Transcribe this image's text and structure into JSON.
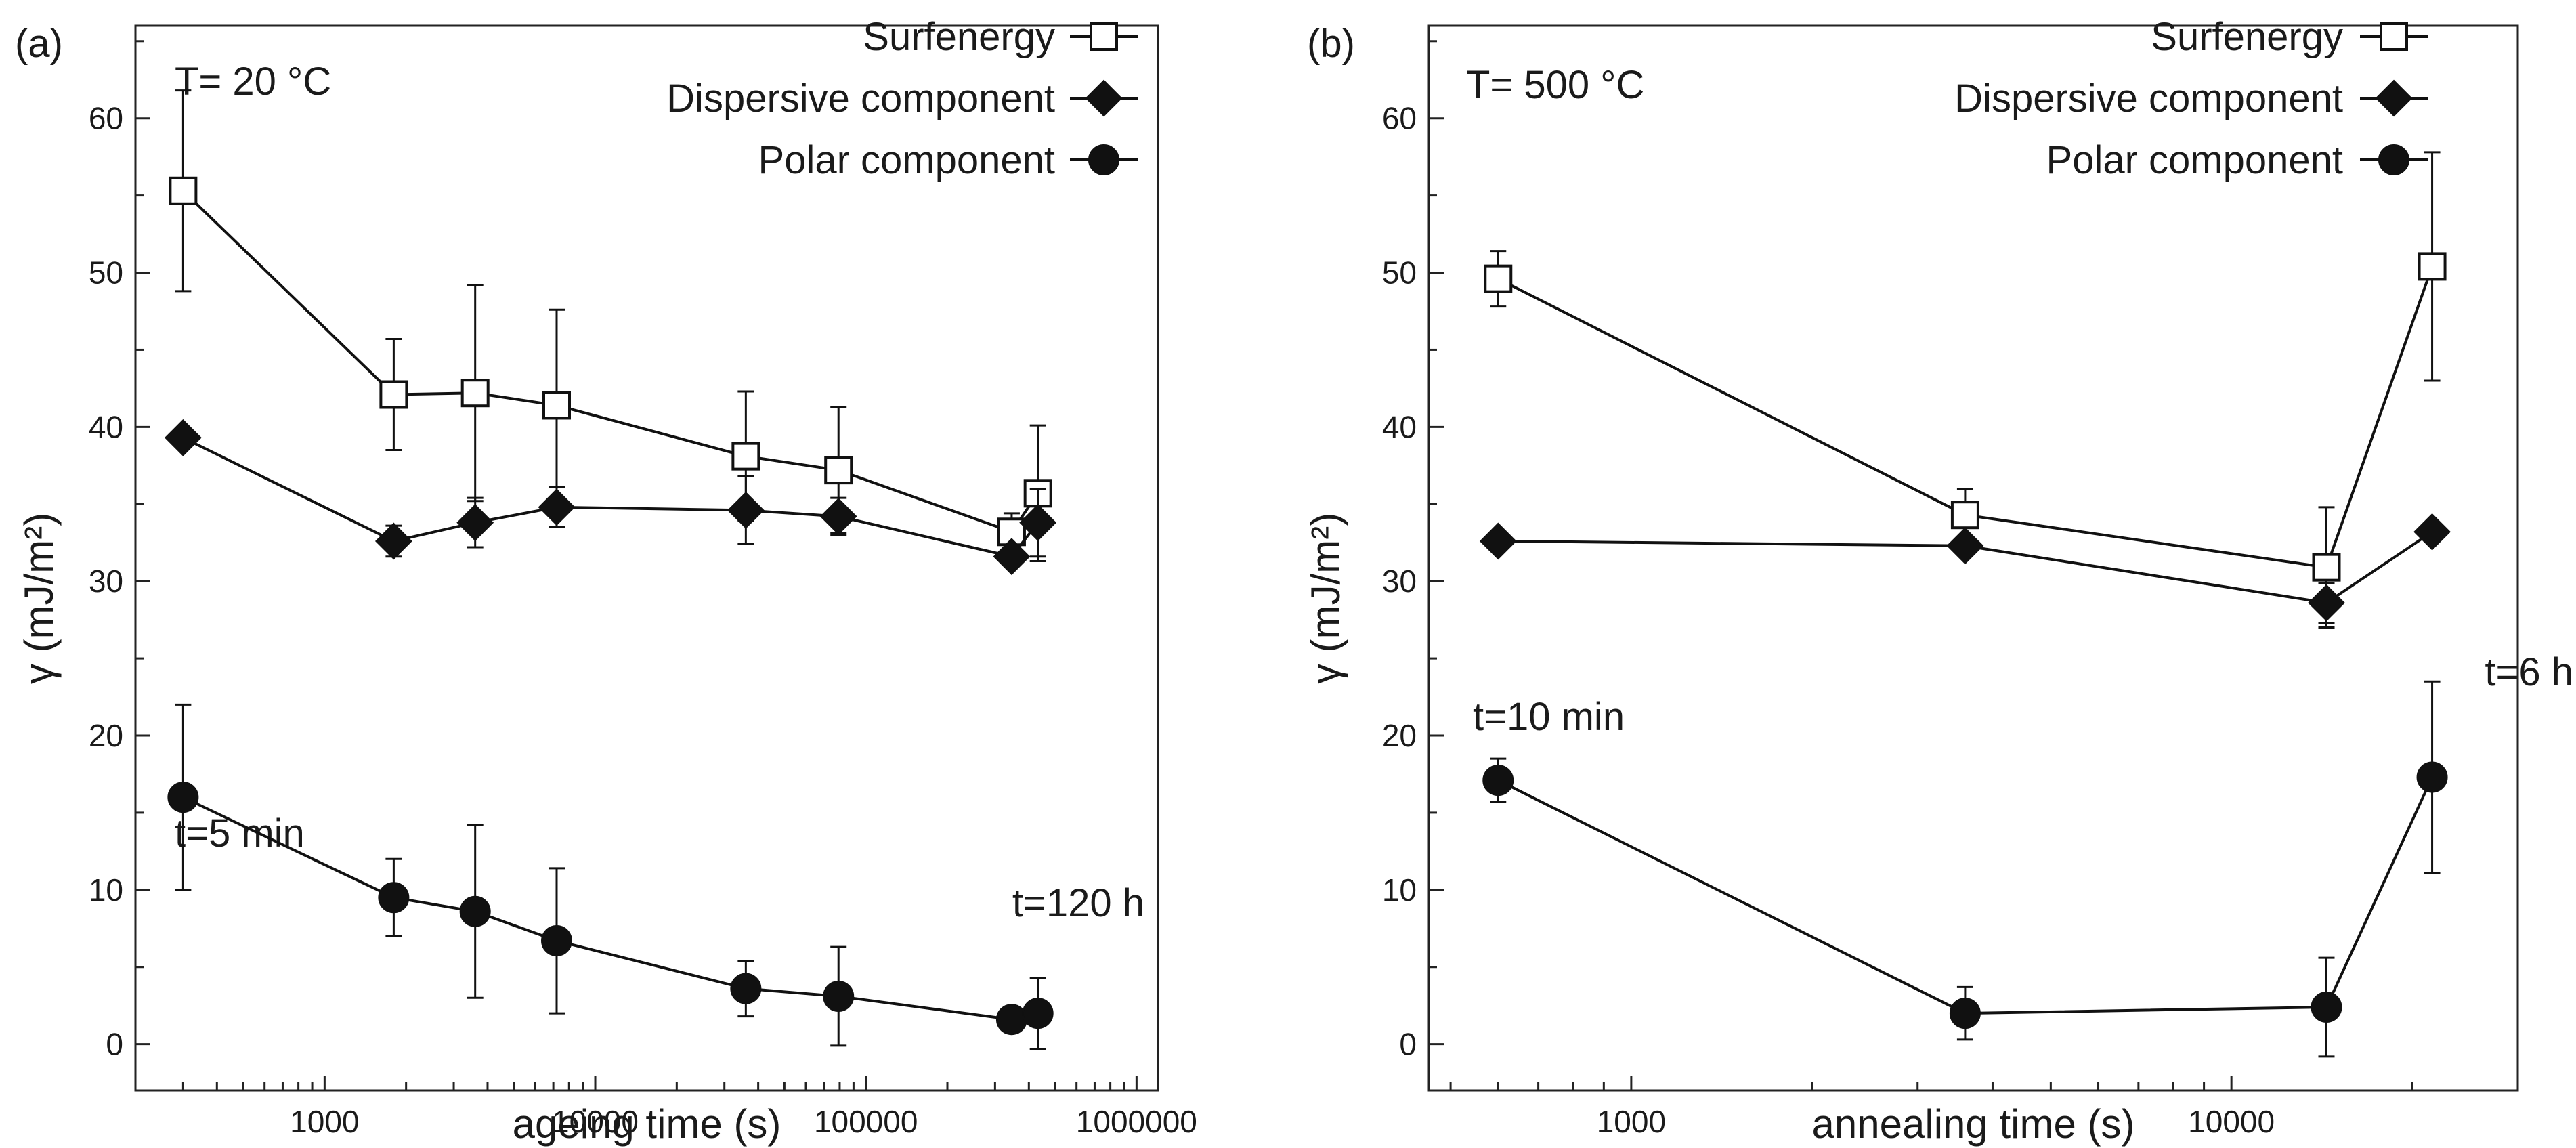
{
  "figure": {
    "panels": [
      "(a)",
      "(b)"
    ]
  },
  "chart_data": [
    {
      "type": "line",
      "panel_label": "(a)",
      "x_scale": "log",
      "xlabel": "ageing time (s)",
      "ylabel": "γ (mJ/m²)",
      "xlim": [
        200,
        1200000
      ],
      "ylim": [
        -3,
        66
      ],
      "xticks": [
        1000,
        10000,
        100000,
        1000000
      ],
      "xtick_labels": [
        "1000",
        "10000",
        "100000",
        "1000000"
      ],
      "yticks": [
        0,
        10,
        20,
        30,
        40,
        50,
        60
      ],
      "ytick_labels": [
        "0",
        "10",
        "20",
        "30",
        "40",
        "50",
        "60"
      ],
      "condition": "T= 20 °C",
      "annotations": [
        {
          "text": "t=5 min",
          "x": 300,
          "y": 23.5
        },
        {
          "text": "t=120 h",
          "x": 420000,
          "y": 6.3
        }
      ],
      "legend_position": "top-right",
      "series": [
        {
          "name": "Surfenergy",
          "marker": "open-square",
          "x": [
            300,
            1800,
            3600,
            7200,
            36000,
            79200,
            345600,
            432000
          ],
          "values": [
            55.3,
            42.1,
            42.2,
            41.4,
            38.1,
            37.2,
            33.2,
            35.7
          ],
          "error": [
            6.5,
            3.6,
            7.0,
            6.2,
            4.2,
            4.1,
            1.2,
            4.4
          ]
        },
        {
          "name": "Dispersive component",
          "marker": "filled-diamond",
          "x": [
            300,
            1800,
            3600,
            7200,
            36000,
            79200,
            345600,
            432000
          ],
          "values": [
            39.3,
            32.6,
            33.8,
            34.8,
            34.6,
            34.2,
            31.6,
            33.8
          ],
          "error": [
            0.6,
            1.0,
            1.6,
            1.3,
            2.2,
            1.2,
            0.5,
            2.2
          ]
        },
        {
          "name": "Polar component",
          "marker": "filled-circle",
          "x": [
            300,
            1800,
            3600,
            7200,
            36000,
            79200,
            345600,
            432000
          ],
          "values": [
            16.0,
            9.5,
            8.6,
            6.7,
            3.6,
            3.1,
            1.6,
            2.0
          ],
          "error": [
            6.0,
            2.5,
            5.6,
            4.7,
            1.8,
            3.2,
            0.5,
            2.3
          ]
        }
      ]
    },
    {
      "type": "line",
      "panel_label": "(b)",
      "x_scale": "log",
      "xlabel": "annealing time (s)",
      "ylabel": "γ (mJ/m²)",
      "xlim": [
        460,
        30000
      ],
      "ylim": [
        -3,
        66
      ],
      "xticks": [
        1000,
        10000
      ],
      "xtick_labels": [
        "1000",
        "10000"
      ],
      "yticks": [
        0,
        10,
        20,
        30,
        40,
        50,
        60
      ],
      "ytick_labels": [
        "0",
        "10",
        "20",
        "30",
        "40",
        "50",
        "60"
      ],
      "condition": "T= 500 °C",
      "annotations": [
        {
          "text": "t=10 min",
          "x": 600,
          "y": 23.0
        },
        {
          "text": "t=6 h",
          "x": 21600,
          "y": 29.0
        }
      ],
      "legend_position": "top-right",
      "series": [
        {
          "name": "Surfenergy",
          "marker": "open-square",
          "x": [
            600,
            3600,
            14400,
            21600
          ],
          "values": [
            49.6,
            34.3,
            30.9,
            50.4
          ],
          "error": [
            1.8,
            1.7,
            3.9,
            7.4
          ]
        },
        {
          "name": "Dispersive component",
          "marker": "filled-diamond",
          "x": [
            600,
            3600,
            14400,
            21600
          ],
          "values": [
            32.6,
            32.3,
            28.6,
            33.2
          ],
          "error": [
            0.4,
            0.4,
            1.3,
            0.4
          ]
        },
        {
          "name": "Polar component",
          "marker": "filled-circle",
          "x": [
            600,
            3600,
            14400,
            21600
          ],
          "values": [
            17.1,
            2.0,
            2.4,
            17.3
          ],
          "error": [
            1.4,
            1.7,
            3.2,
            6.2
          ]
        }
      ]
    }
  ]
}
